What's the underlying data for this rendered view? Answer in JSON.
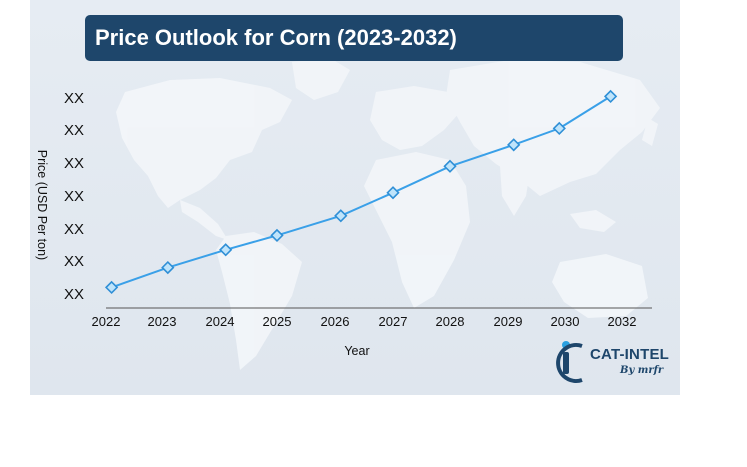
{
  "chart_data": {
    "type": "line",
    "title": "Price Outlook for Corn (2023-2032)",
    "xlabel": "Year",
    "ylabel": "Price (USD Per ton)",
    "x_tick_labels": [
      "2022",
      "2023",
      "2024",
      "2025",
      "2026",
      "2027",
      "2028",
      "2029",
      "2030",
      "2032"
    ],
    "y_tick_labels": [
      "XX",
      "XX",
      "XX",
      "XX",
      "XX",
      "XX",
      "XX"
    ],
    "series": [
      {
        "x": [
          2022.1,
          2023.1,
          2024.1,
          2025.0,
          2026.1,
          2027.0,
          2028.0,
          2029.1,
          2029.9,
          2030.8
        ],
        "y": [
          0.2,
          0.8,
          1.35,
          1.8,
          2.4,
          3.1,
          3.9,
          4.55,
          5.05,
          6.05
        ]
      }
    ],
    "line_color": "#3aa0e8",
    "marker": "diamond",
    "grid": false,
    "legend": "none"
  },
  "logo": {
    "name": "CAT-INTEL",
    "tagline": "By mrfr"
  }
}
